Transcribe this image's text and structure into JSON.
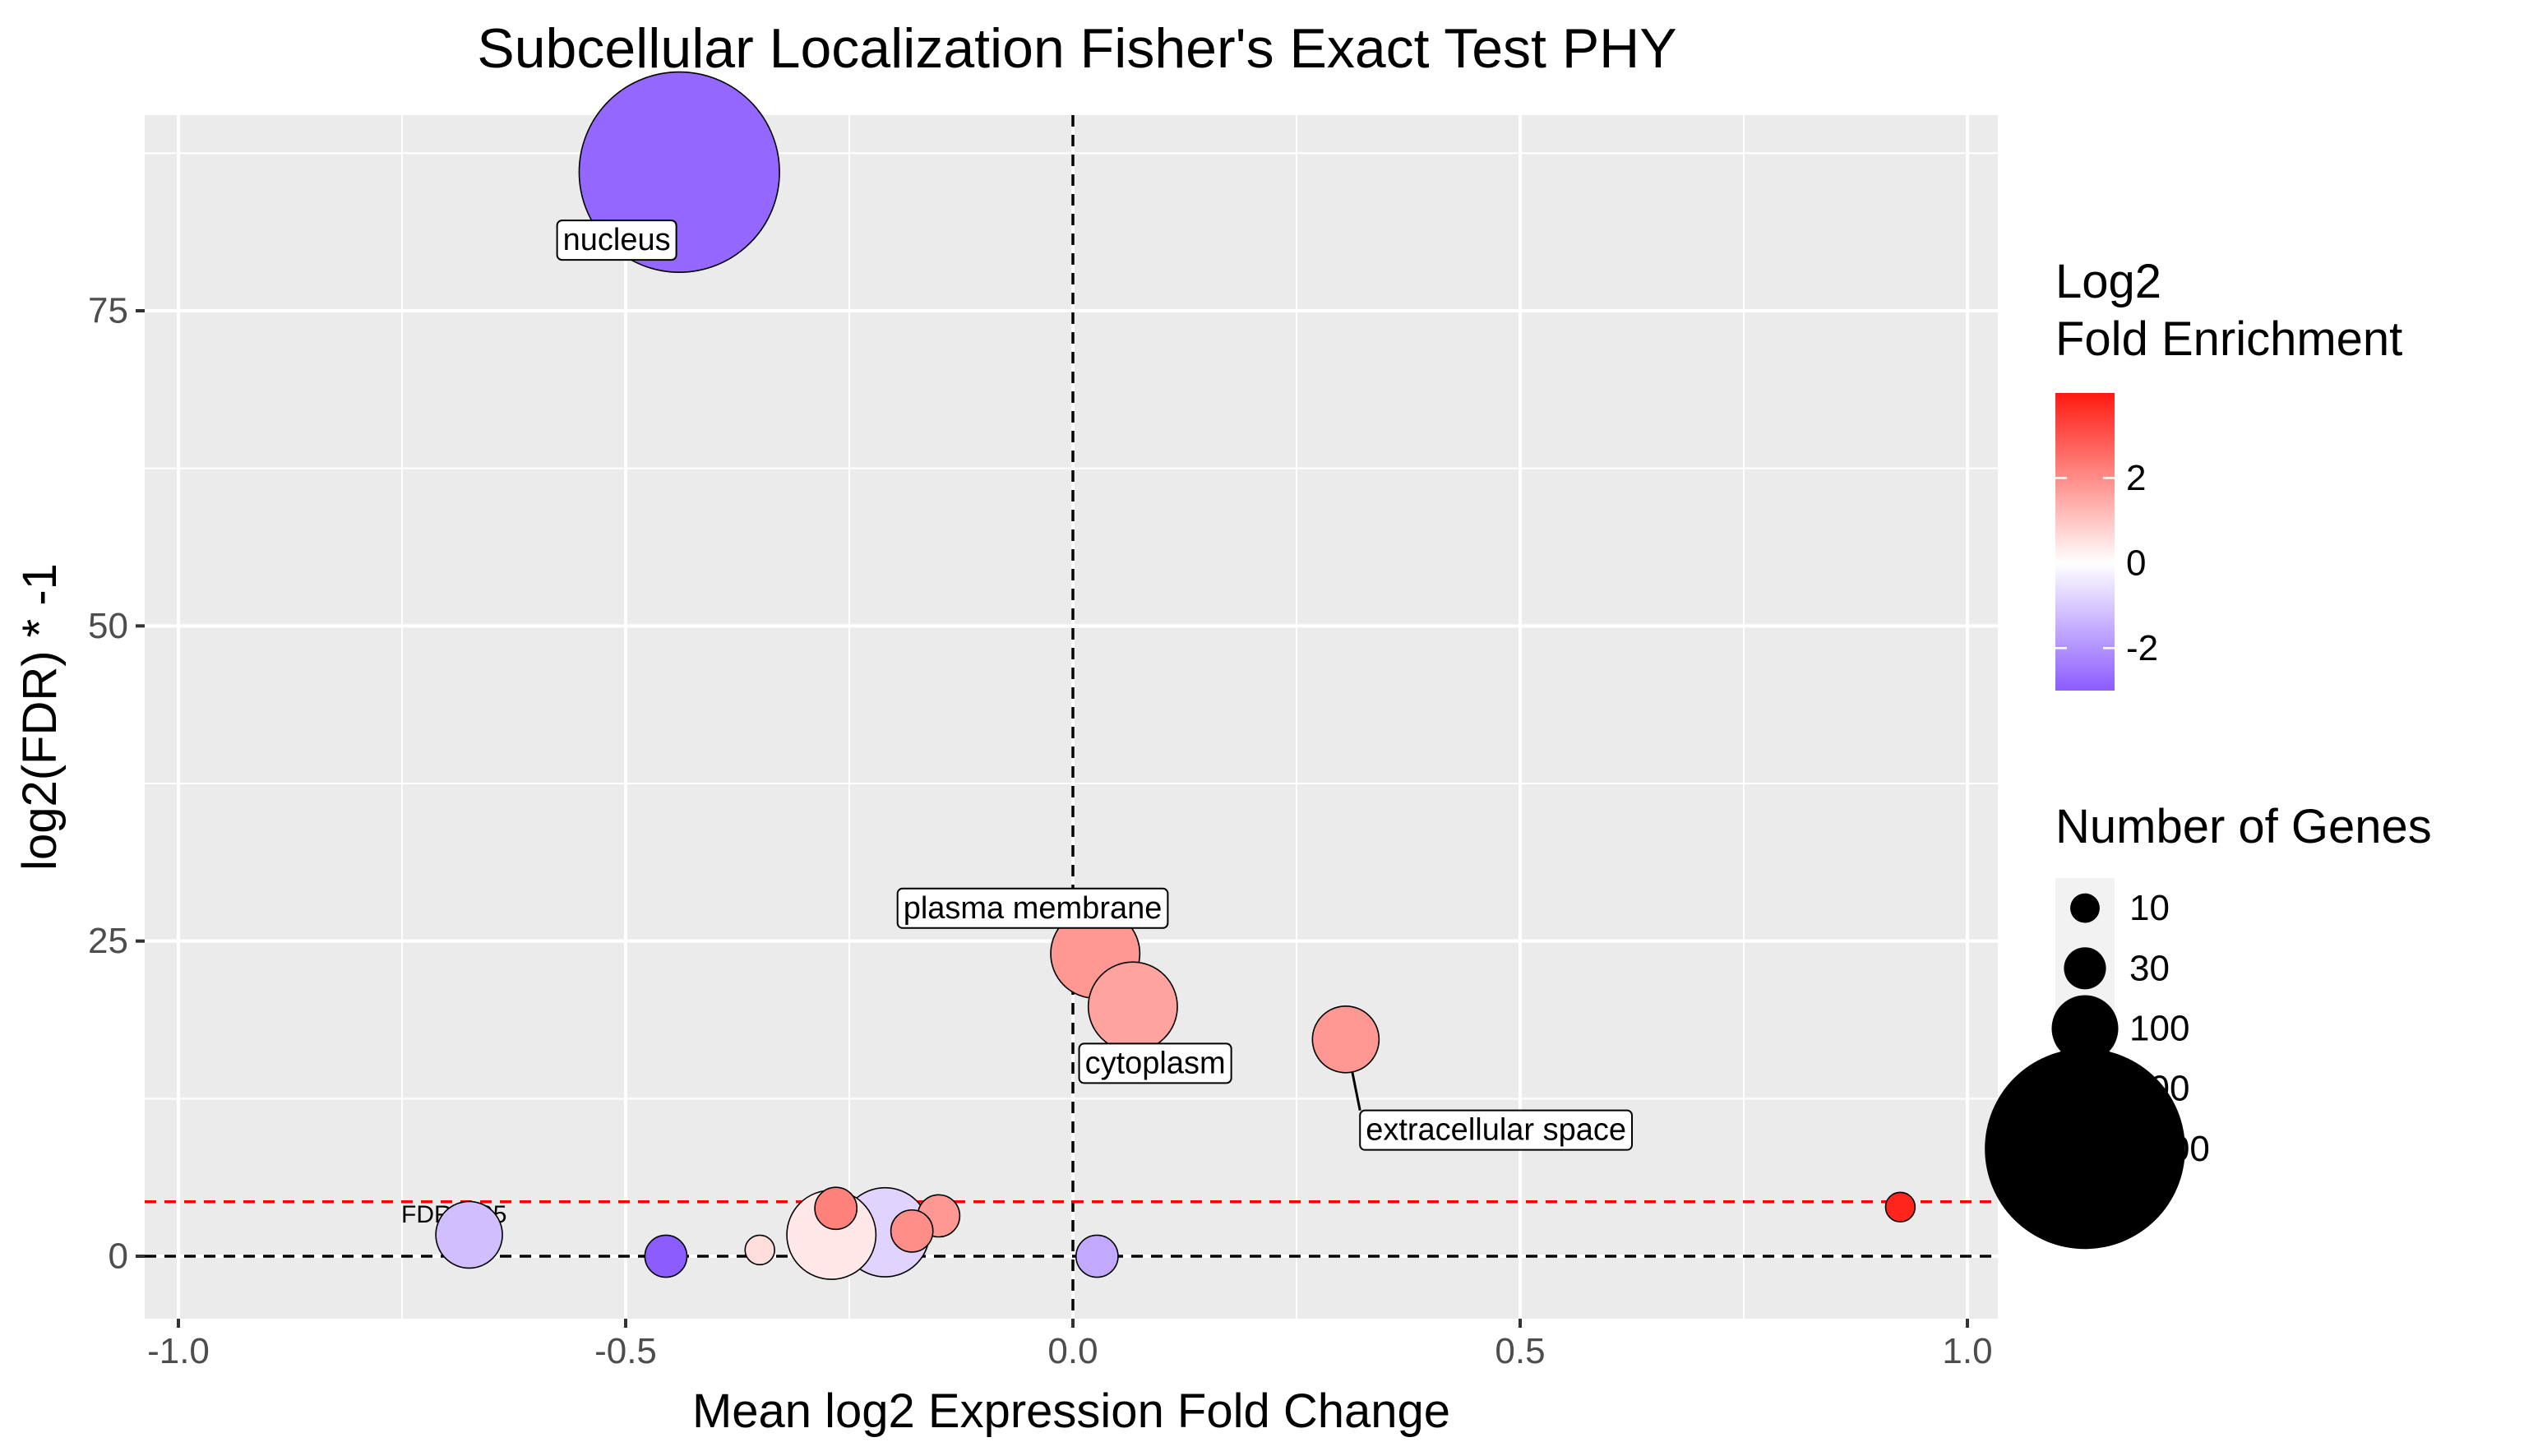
{
  "chart_data": {
    "type": "scatter",
    "title": "Subcellular Localization Fisher's Exact Test PHY",
    "xlabel": "Mean log2 Expression Fold Change",
    "ylabel": "log2(FDR) * -1",
    "xlim": [
      -1.0,
      1.0
    ],
    "ylim": [
      -6,
      90
    ],
    "x_ticks": [
      -1.0,
      -0.5,
      0.0,
      0.5,
      1.0
    ],
    "x_tick_labels": [
      "-1.0",
      "-0.5",
      "0.0",
      "0.5",
      "1.0"
    ],
    "y_ticks": [
      0,
      25,
      50,
      75
    ],
    "y_tick_labels": [
      "0",
      "25",
      "50",
      "75"
    ],
    "grid": true,
    "reference_lines": {
      "fdr_threshold": {
        "y": 4.32,
        "color": "#ff0000",
        "label": "FDR 0.05"
      },
      "zero_x": {
        "x": 0
      },
      "zero_y": {
        "y": 0
      }
    },
    "points": [
      {
        "x": -0.44,
        "y": 86,
        "enrichment": -2.8,
        "genes": 1200,
        "label": "nucleus"
      },
      {
        "x": 0.025,
        "y": 24,
        "enrichment": 1.8,
        "genes": 200,
        "label": "plasma membrane"
      },
      {
        "x": 0.067,
        "y": 19.8,
        "enrichment": 1.6,
        "genes": 200,
        "label": "cytoplasm"
      },
      {
        "x": 0.305,
        "y": 17.2,
        "enrichment": 1.8,
        "genes": 100,
        "label": "extracellular space"
      },
      {
        "x": 0.925,
        "y": 3.9,
        "enrichment": 3.8,
        "genes": 10,
        "label": ""
      },
      {
        "x": -0.265,
        "y": 3.8,
        "enrichment": 2.2,
        "genes": 30,
        "label": ""
      },
      {
        "x": -0.15,
        "y": 3.2,
        "enrichment": 1.8,
        "genes": 30,
        "label": ""
      },
      {
        "x": -0.21,
        "y": 1.9,
        "enrichment": -0.8,
        "genes": 200,
        "label": ""
      },
      {
        "x": -0.18,
        "y": 2.0,
        "enrichment": 2.0,
        "genes": 30,
        "label": ""
      },
      {
        "x": -0.27,
        "y": 1.7,
        "enrichment": 0.4,
        "genes": 200,
        "label": ""
      },
      {
        "x": -0.675,
        "y": 1.7,
        "enrichment": -1.2,
        "genes": 100,
        "label": ""
      },
      {
        "x": -0.35,
        "y": 0.5,
        "enrichment": 0.6,
        "genes": 10,
        "label": ""
      },
      {
        "x": -0.455,
        "y": 0,
        "enrichment": -3.0,
        "genes": 30,
        "label": ""
      },
      {
        "x": 0.027,
        "y": 0,
        "enrichment": -1.6,
        "genes": 30,
        "label": ""
      }
    ],
    "legend_color": {
      "title_line1": "Log2",
      "title_line2": "Fold Enrichment",
      "ticks": [
        2,
        0,
        -2
      ],
      "tick_labels": [
        "2",
        "0",
        "-2"
      ],
      "range": [
        -3,
        4
      ],
      "low_color": "#8c5cff",
      "mid_color": "#ffffff",
      "high_color": "#ff1a10"
    },
    "legend_size": {
      "title": "Number of Genes",
      "values": [
        10,
        30,
        100,
        200,
        1200
      ],
      "labels": [
        "10",
        "30",
        "100",
        "200",
        "1200"
      ]
    },
    "legend_placement": "right"
  }
}
